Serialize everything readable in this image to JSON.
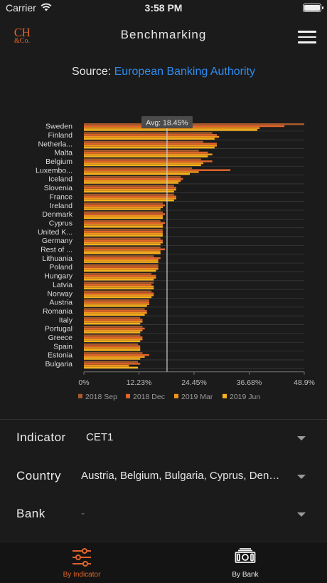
{
  "status_bar": {
    "carrier": "Carrier",
    "time": "3:58 PM"
  },
  "nav": {
    "logo_line1": "CH",
    "logo_line2": "&Co.",
    "title": "Benchmarking"
  },
  "source": {
    "prefix": "Source:",
    "link": "European Banking Authority"
  },
  "colors": {
    "accent": "#e0642b",
    "link": "#2f8bef",
    "background": "#1b1b1b"
  },
  "chart_data": {
    "type": "bar",
    "orientation": "horizontal",
    "categories": [
      "Sweden",
      "Finland",
      "Netherla...",
      "Malta",
      "Belgium",
      "Luxembo...",
      "Iceland",
      "Slovenia",
      "France",
      "Ireland",
      "Denmark",
      "Cyprus",
      "United K...",
      "Germany",
      "Rest of ...",
      "Lithuania",
      "Poland",
      "Hungary",
      "Latvia",
      "Norway",
      "Austria",
      "Romania",
      "Italy",
      "Portugal",
      "Greece",
      "Spain",
      "Estonia",
      "Bulgaria"
    ],
    "series": [
      {
        "name": "2018 Sep",
        "color": "#a85a2a",
        "values": [
          48.9,
          28.5,
          26.5,
          25.5,
          26.0,
          24.0,
          21.5,
          20.0,
          20.0,
          17.5,
          17.5,
          17.0,
          17.5,
          17.0,
          17.0,
          15.5,
          16.5,
          15.0,
          15.5,
          15.0,
          14.5,
          13.5,
          12.5,
          13.0,
          12.5,
          12.0,
          13.0,
          12.0
        ]
      },
      {
        "name": "2018 Dec",
        "color": "#e0642b",
        "values": [
          44.5,
          29.5,
          29.5,
          27.5,
          28.5,
          32.5,
          22.0,
          20.5,
          20.5,
          18.0,
          18.0,
          18.0,
          17.5,
          17.5,
          18.0,
          17.0,
          16.5,
          16.0,
          15.0,
          15.5,
          14.5,
          14.0,
          13.0,
          13.5,
          13.0,
          12.5,
          14.5,
          12.5
        ]
      },
      {
        "name": "2019 Mar",
        "color": "#f0961e",
        "values": [
          39.0,
          30.0,
          29.5,
          28.5,
          26.5,
          25.5,
          21.5,
          20.5,
          20.5,
          17.5,
          17.5,
          17.5,
          17.5,
          17.5,
          17.0,
          16.5,
          16.5,
          16.0,
          15.5,
          15.5,
          14.5,
          14.0,
          13.0,
          13.0,
          13.0,
          12.5,
          13.5,
          10.0
        ]
      },
      {
        "name": "2019 Jun",
        "color": "#f7b21d",
        "values": [
          38.5,
          29.0,
          29.0,
          27.5,
          26.0,
          23.5,
          21.0,
          20.0,
          20.0,
          17.0,
          17.5,
          17.5,
          17.5,
          17.0,
          17.0,
          16.5,
          16.0,
          15.5,
          15.5,
          15.0,
          14.0,
          13.5,
          12.5,
          12.5,
          12.5,
          12.5,
          12.5,
          12.0
        ]
      }
    ],
    "x_ticks": [
      "0%",
      "12.23%",
      "24.45%",
      "36.68%",
      "48.9%"
    ],
    "xlim": [
      0,
      48.9
    ],
    "average": {
      "value": 18.45,
      "label": "Avg: 18.45%"
    },
    "legend_position": "bottom",
    "grid": true
  },
  "filters": {
    "indicator": {
      "label": "Indicator",
      "value": "CET1"
    },
    "country": {
      "label": "Country",
      "value": "Austria, Belgium, Bulgaria, Cyprus, Denmark, Estonia"
    },
    "bank": {
      "label": "Bank",
      "value": "-"
    }
  },
  "tabs": [
    {
      "label": "By Indicator",
      "icon": "sliders-icon",
      "active": true
    },
    {
      "label": "By Bank",
      "icon": "banknote-icon",
      "active": false
    }
  ]
}
